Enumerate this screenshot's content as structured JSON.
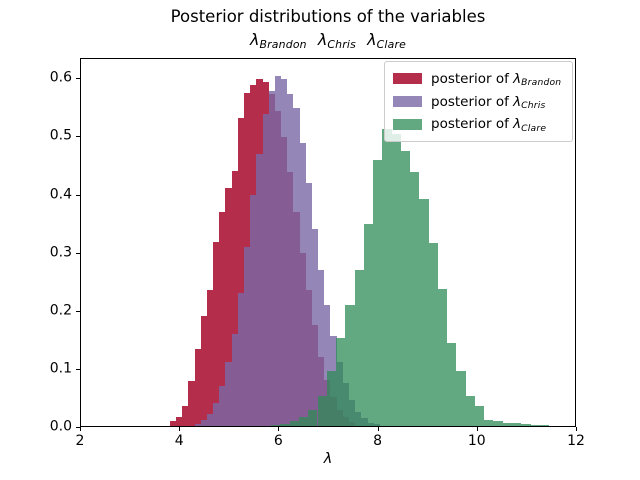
{
  "figure": {
    "title": "Posterior distributions of the variables",
    "xlabel": "λ"
  },
  "subtitle": {
    "parts": [
      {
        "symbol": "λ",
        "subscript": "Brandon"
      },
      {
        "symbol": "λ",
        "subscript": "Chris"
      },
      {
        "symbol": "λ",
        "subscript": "Clare"
      }
    ]
  },
  "legend": {
    "entries": [
      {
        "prefix": "posterior of ",
        "symbol": "λ",
        "subscript": "Brandon",
        "color": "rgba(166, 6, 40, 0.84)"
      },
      {
        "prefix": "posterior of ",
        "symbol": "λ",
        "subscript": "Chris",
        "color": "rgba(122, 104, 166, 0.80)"
      },
      {
        "prefix": "posterior of ",
        "symbol": "λ",
        "subscript": "Clare",
        "color": "rgba(46, 139, 87, 0.75)"
      }
    ]
  },
  "axis": {
    "xtick_labels": [
      "2",
      "4",
      "6",
      "8",
      "10",
      "12"
    ],
    "ytick_labels": [
      "0.0",
      "0.1",
      "0.2",
      "0.3",
      "0.4",
      "0.5",
      "0.6"
    ]
  },
  "chart_data": {
    "type": "bar",
    "subtype": "histogram-stepfilled",
    "title": "Posterior distributions of the variables",
    "subtitle": "λ_Brandon λ_Chris λ_Clare",
    "xlabel": "λ",
    "ylabel": "",
    "xlim": [
      2,
      12
    ],
    "ylim": [
      0,
      0.635
    ],
    "xticks": [
      2,
      4,
      6,
      8,
      10,
      12
    ],
    "yticks": [
      0.0,
      0.1,
      0.2,
      0.3,
      0.4,
      0.5,
      0.6
    ],
    "grid": false,
    "legend_position": "upper right",
    "series": [
      {
        "name": "posterior of λ_Brandon",
        "base_color": "#A60628",
        "rgba": "rgba(166, 6, 40, 0.84)",
        "bin_start": 3.8,
        "bin_width": 0.125,
        "heights": [
          0.008,
          0.016,
          0.035,
          0.078,
          0.133,
          0.19,
          0.236,
          0.319,
          0.37,
          0.411,
          0.442,
          0.533,
          0.576,
          0.59,
          0.6,
          0.595,
          0.575,
          0.545,
          0.5,
          0.44,
          0.37,
          0.3,
          0.235,
          0.175,
          0.12,
          0.08,
          0.05,
          0.028,
          0.015,
          0.007
        ]
      },
      {
        "name": "posterior of λ_Chris",
        "base_color": "#7A68A6",
        "rgba": "rgba(122, 104, 166, 0.80)",
        "bin_start": 4.3,
        "bin_width": 0.125,
        "heights": [
          0.004,
          0.01,
          0.02,
          0.04,
          0.07,
          0.11,
          0.16,
          0.23,
          0.31,
          0.4,
          0.47,
          0.54,
          0.58,
          0.605,
          0.6,
          0.575,
          0.55,
          0.49,
          0.42,
          0.34,
          0.27,
          0.21,
          0.155,
          0.11,
          0.075,
          0.045,
          0.025,
          0.013,
          0.006,
          0.003
        ]
      },
      {
        "name": "posterior of λ_Clare",
        "base_color": "#2E8B57",
        "rgba": "rgba(46, 139, 87, 0.75)",
        "bin_start": 5.85,
        "bin_width": 0.1875,
        "heights": [
          0.002,
          0.004,
          0.008,
          0.015,
          0.028,
          0.052,
          0.095,
          0.152,
          0.21,
          0.27,
          0.35,
          0.46,
          0.514,
          0.505,
          0.476,
          0.44,
          0.392,
          0.317,
          0.237,
          0.143,
          0.095,
          0.052,
          0.035,
          0.011,
          0.009,
          0.006,
          0.005,
          0.003,
          0.002,
          0.001
        ]
      }
    ]
  }
}
